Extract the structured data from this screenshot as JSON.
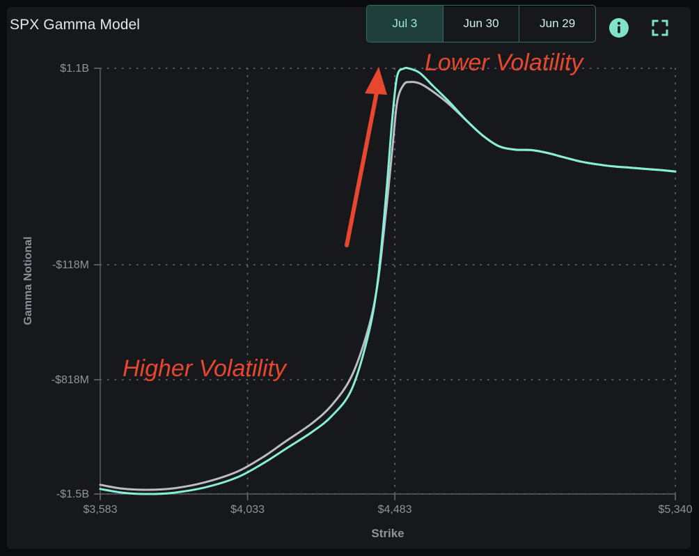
{
  "panel": {
    "title": "SPX Gamma Model",
    "tabs": [
      {
        "label": "Jul 3",
        "active": true
      },
      {
        "label": "Jun 30",
        "active": false
      },
      {
        "label": "Jun 29",
        "active": false
      }
    ],
    "icons": [
      "info-icon",
      "fullscreen-icon"
    ]
  },
  "colors": {
    "background": "#17181b",
    "accent": "#7fe3cc",
    "series_current": "#86f0d6",
    "series_prior": "#b9bdc4",
    "annotation": "#e8472f",
    "grid": "#6b6f75"
  },
  "chart_data": {
    "type": "line",
    "title": "SPX Gamma Model",
    "xlabel": "Strike",
    "ylabel": "Gamma Notional",
    "x_ticks": [
      {
        "value": 3583,
        "label": "$3,583"
      },
      {
        "value": 4033,
        "label": "$4,033"
      },
      {
        "value": 4483,
        "label": "$4,483"
      },
      {
        "value": 5340,
        "label": "$5,340"
      }
    ],
    "y_ticks": [
      {
        "value": 1100,
        "label": "$1.1B"
      },
      {
        "value": -118,
        "label": "-$118M"
      },
      {
        "value": -818,
        "label": "-$818M"
      },
      {
        "value": -1500,
        "label": "-$1.5B"
      }
    ],
    "xlim": [
      3583,
      5340
    ],
    "grid": true,
    "series": [
      {
        "key": "current",
        "x": [
          3583,
          3650,
          3720,
          3800,
          3900,
          4000,
          4080,
          4150,
          4230,
          4290,
          4350,
          4400,
          4430,
          4455,
          4475,
          4490,
          4510,
          4530,
          4560,
          4600,
          4650,
          4700,
          4750,
          4800,
          4850,
          4900,
          4950,
          5000,
          5050,
          5100,
          5150,
          5200,
          5250,
          5300,
          5340
        ],
        "y": [
          -1470,
          -1492,
          -1500,
          -1494,
          -1462,
          -1402,
          -1318,
          -1230,
          -1130,
          -1035,
          -880,
          -560,
          -230,
          280,
          780,
          1050,
          1098,
          1097,
          1070,
          990,
          890,
          780,
          686,
          618,
          596,
          593,
          575,
          548,
          522,
          505,
          492,
          484,
          476,
          468,
          460
        ]
      },
      {
        "key": "prior",
        "x": [
          3583,
          3650,
          3720,
          3800,
          3900,
          4000,
          4080,
          4150,
          4230,
          4290,
          4350,
          4400,
          4430,
          4455,
          4475,
          4490,
          4510,
          4530,
          4560,
          4600,
          4650,
          4700,
          4750,
          4800,
          4850,
          4900,
          4950,
          5000,
          5050,
          5100,
          5150,
          5200,
          5250,
          5300,
          5340
        ],
        "y": [
          -1445,
          -1468,
          -1475,
          -1468,
          -1432,
          -1368,
          -1280,
          -1185,
          -1078,
          -970,
          -800,
          -520,
          -240,
          190,
          590,
          890,
          998,
          1015,
          1005,
          955,
          875,
          780,
          686,
          618,
          596,
          593,
          575,
          548,
          522,
          505,
          492,
          484,
          476,
          468,
          460
        ]
      }
    ],
    "annotations": [
      {
        "text": "Lower Volatility"
      },
      {
        "text": "Higher Volatility"
      }
    ]
  }
}
